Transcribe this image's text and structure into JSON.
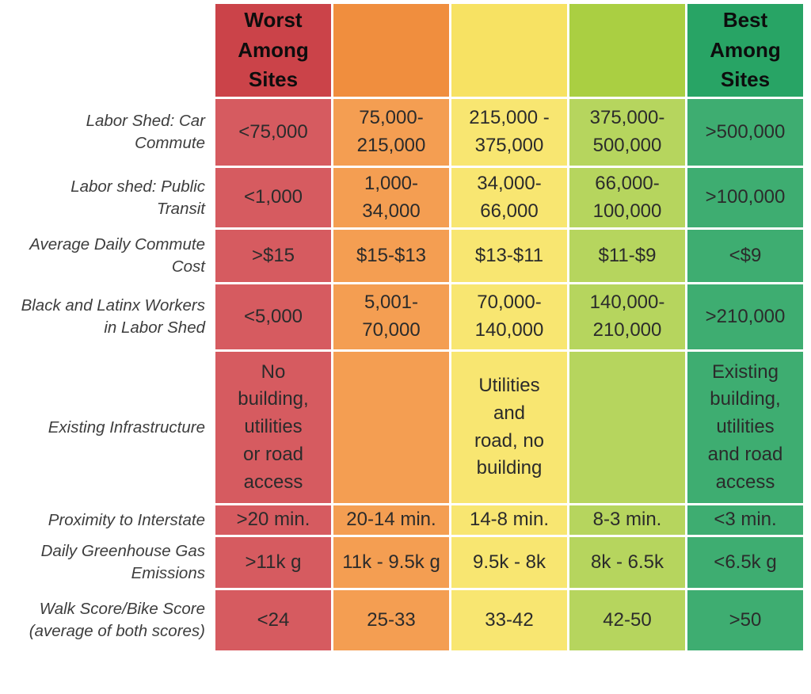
{
  "palette": {
    "header": [
      "#cb4349",
      "#f08e3e",
      "#f7e263",
      "#aacf42",
      "#28a465"
    ],
    "body": [
      "#d65b60",
      "#f49e52",
      "#f8e671",
      "#b6d55e",
      "#3ead71"
    ],
    "gap": "#ffffff",
    "label_text": "#3d3d3d",
    "cell_text": "#2b2b2b"
  },
  "table": {
    "header": [
      "Worst\nAmong\nSites",
      "",
      "",
      "",
      "Best\nAmong\nSites"
    ],
    "rows": [
      {
        "label": "Labor Shed: Car\nCommute",
        "values": [
          "<75,000",
          "75,000-\n215,000",
          "215,000 -\n375,000",
          "375,000-\n500,000",
          ">500,000"
        ]
      },
      {
        "label": "Labor shed: Public\nTransit",
        "values": [
          "<1,000",
          "1,000-\n34,000",
          "34,000-\n66,000",
          "66,000-\n100,000",
          ">100,000"
        ]
      },
      {
        "label": "Average Daily Commute\nCost",
        "values": [
          ">$15",
          "$15-$13",
          "$13-$11",
          "$11-$9",
          "<$9"
        ]
      },
      {
        "label": "Black and Latinx Workers\nin Labor Shed",
        "values": [
          "<5,000",
          "5,001-\n70,000",
          "70,000-\n140,000",
          "140,000-\n210,000",
          ">210,000"
        ]
      },
      {
        "label": "Existing Infrastructure",
        "values": [
          "No\nbuilding,\nutilities\nor road\naccess",
          "",
          "Utilities\nand\nroad, no\nbuilding",
          "",
          "Existing\nbuilding,\nutilities\nand road\naccess"
        ]
      },
      {
        "label": "Proximity to Interstate",
        "values": [
          ">20 min.",
          "20-14 min.",
          "14-8 min.",
          "8-3 min.",
          "<3 min."
        ]
      },
      {
        "label": "Daily Greenhouse Gas\nEmissions",
        "values": [
          ">11k g",
          "11k - 9.5k g",
          "9.5k - 8k",
          "8k - 6.5k",
          "<6.5k g"
        ]
      },
      {
        "label": "Walk Score/Bike Score\n(average of both scores)",
        "values": [
          "<24",
          "25-33",
          "33-42",
          "42-50",
          ">50"
        ]
      }
    ]
  },
  "chart_data": {
    "type": "table",
    "title": "Site comparison rubric (worst to best among sites)",
    "column_tiers": [
      "Worst Among Sites",
      "",
      "",
      "",
      "Best Among Sites"
    ],
    "tier_colors": [
      "#cb4349",
      "#f08e3e",
      "#f7e263",
      "#aacf42",
      "#28a465"
    ],
    "rows": [
      {
        "criterion": "Labor Shed: Car Commute",
        "values": [
          "<75,000",
          "75,000-215,000",
          "215,000 - 375,000",
          "375,000-500,000",
          ">500,000"
        ]
      },
      {
        "criterion": "Labor shed: Public Transit",
        "values": [
          "<1,000",
          "1,000-34,000",
          "34,000-66,000",
          "66,000-100,000",
          ">100,000"
        ]
      },
      {
        "criterion": "Average Daily Commute Cost",
        "values": [
          ">$15",
          "$15-$13",
          "$13-$11",
          "$11-$9",
          "<$9"
        ]
      },
      {
        "criterion": "Black and Latinx Workers in Labor Shed",
        "values": [
          "<5,000",
          "5,001-70,000",
          "70,000-140,000",
          "140,000-210,000",
          ">210,000"
        ]
      },
      {
        "criterion": "Existing Infrastructure",
        "values": [
          "No building, utilities or road access",
          "",
          "Utilities and road, no building",
          "",
          "Existing building, utilities and road access"
        ]
      },
      {
        "criterion": "Proximity to Interstate",
        "values": [
          ">20 min.",
          "20-14 min.",
          "14-8 min.",
          "8-3 min.",
          "<3 min."
        ]
      },
      {
        "criterion": "Daily Greenhouse Gas Emissions",
        "values": [
          ">11k g",
          "11k - 9.5k g",
          "9.5k - 8k",
          "8k - 6.5k",
          "<6.5k g"
        ]
      },
      {
        "criterion": "Walk Score/Bike Score (average of both scores)",
        "values": [
          "<24",
          "25-33",
          "33-42",
          "42-50",
          ">50"
        ]
      }
    ]
  }
}
